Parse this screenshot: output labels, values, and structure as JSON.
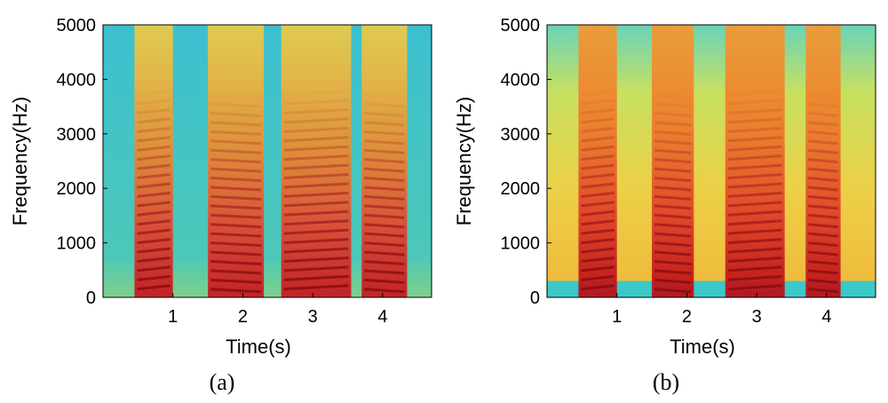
{
  "chart_data": [
    {
      "type": "heatmap",
      "panel_label": "(a)",
      "xlabel": "Time(s)",
      "ylabel": "Frequency(Hz)",
      "xlim": [
        0,
        4.7
      ],
      "ylim": [
        0,
        5000
      ],
      "xticks": [
        "1",
        "2",
        "3",
        "4"
      ],
      "yticks": [
        "0",
        "1000",
        "2000",
        "3000",
        "4000",
        "5000"
      ],
      "colormap": "jet",
      "background_color": "#3fc8c8",
      "syllables": [
        {
          "start": 0.45,
          "end": 1.0
        },
        {
          "start": 1.5,
          "end": 2.3
        },
        {
          "start": 2.55,
          "end": 3.55
        },
        {
          "start": 3.7,
          "end": 4.35
        }
      ]
    },
    {
      "type": "heatmap",
      "panel_label": "(b)",
      "xlabel": "Time(s)",
      "ylabel": "Frequency(Hz)",
      "xlim": [
        0,
        4.7
      ],
      "ylim": [
        0,
        5000
      ],
      "xticks": [
        "1",
        "2",
        "3",
        "4"
      ],
      "yticks": [
        "0",
        "1000",
        "2000",
        "3000",
        "4000",
        "5000"
      ],
      "colormap": "jet",
      "background_color": "#e8d44a",
      "syllables": [
        {
          "start": 0.45,
          "end": 1.0
        },
        {
          "start": 1.5,
          "end": 2.1
        },
        {
          "start": 2.55,
          "end": 3.4
        },
        {
          "start": 3.7,
          "end": 4.2
        }
      ]
    }
  ]
}
